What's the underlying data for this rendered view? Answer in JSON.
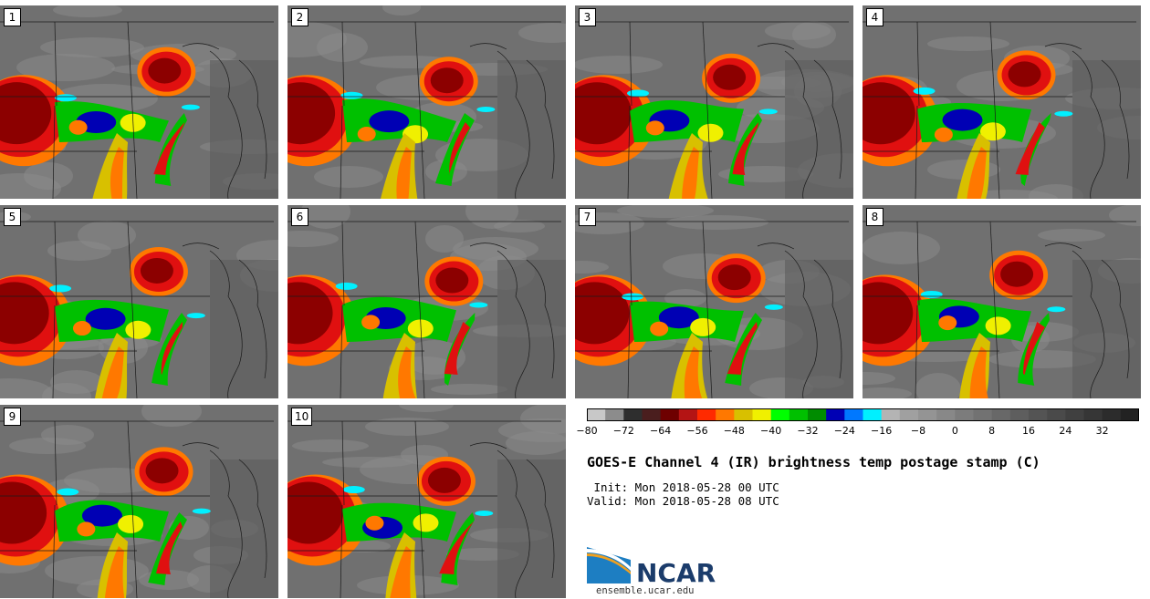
{
  "panels": [
    {
      "label": "1"
    },
    {
      "label": "2"
    },
    {
      "label": "3"
    },
    {
      "label": "4"
    },
    {
      "label": "5"
    },
    {
      "label": "6"
    },
    {
      "label": "7"
    },
    {
      "label": "8"
    },
    {
      "label": "9"
    },
    {
      "label": "10"
    }
  ],
  "colorbar": {
    "ticks": [
      "−80",
      "−72",
      "−64",
      "−56",
      "−48",
      "−40",
      "−32",
      "−24",
      "−16",
      "−8",
      "0",
      "8",
      "16",
      "24",
      "32"
    ],
    "min": -80,
    "max": 40,
    "colors": [
      "#c8c8c8",
      "#8c8c8c",
      "#2e2e2e",
      "#4a1e1e",
      "#6e0000",
      "#b41414",
      "#ff2a00",
      "#ff7800",
      "#d8c000",
      "#f0f000",
      "#00ff00",
      "#00c000",
      "#008c00",
      "#0000b4",
      "#0078ff",
      "#00f0ff",
      "#b4b4b4",
      "#a0a0a0",
      "#949494",
      "#888888",
      "#7c7c7c",
      "#727272",
      "#686868",
      "#5e5e5e",
      "#545454",
      "#4a4a4a",
      "#404040",
      "#363636",
      "#2c2c2c",
      "#222222"
    ]
  },
  "title": "GOES-E Channel 4 (IR) brightness temp postage stamp (C)",
  "init": " Init: Mon 2018-05-28 00 UTC",
  "valid": "Valid: Mon 2018-05-28 08 UTC",
  "logo": {
    "text": "NCAR",
    "site": "ensemble.ucar.edu"
  }
}
